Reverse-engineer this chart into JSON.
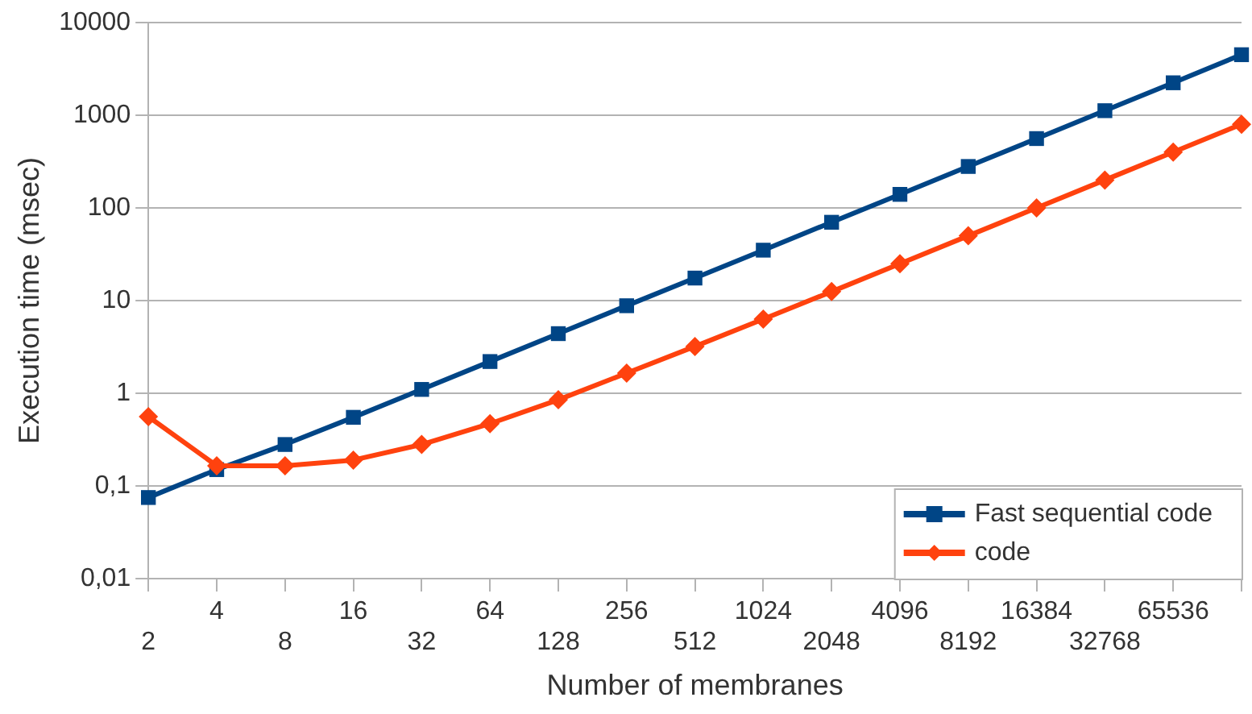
{
  "chart_data": {
    "type": "line",
    "xlabel": "Number of membranes",
    "ylabel": "Execution time (msec)",
    "categories": [
      "2",
      "4",
      "8",
      "16",
      "32",
      "64",
      "128",
      "256",
      "512",
      "1024",
      "2048",
      "4096",
      "8192",
      "16384",
      "32768",
      "65536",
      null
    ],
    "series": [
      {
        "name": "Fast sequential code",
        "color": "#004586",
        "marker": "square",
        "values": [
          0.075,
          0.15,
          0.28,
          0.55,
          1.1,
          2.2,
          4.4,
          8.8,
          17.5,
          35,
          70,
          140,
          280,
          560,
          1120,
          2240,
          4500
        ]
      },
      {
        "name": "code",
        "color": "#ff420e",
        "marker": "diamond",
        "values": [
          0.56,
          0.165,
          0.165,
          0.19,
          0.28,
          0.47,
          0.85,
          1.65,
          3.2,
          6.3,
          12.5,
          25,
          50,
          100,
          200,
          400,
          800
        ]
      }
    ],
    "log": "y",
    "ylim": [
      0.01,
      10000
    ],
    "yticks": [
      {
        "value": 0.01,
        "label": "0,01"
      },
      {
        "value": 0.1,
        "label": "0,1"
      },
      1,
      10,
      100,
      1000,
      10000
    ],
    "grid": "y",
    "legend": "bottom right",
    "line_style": "solid"
  }
}
